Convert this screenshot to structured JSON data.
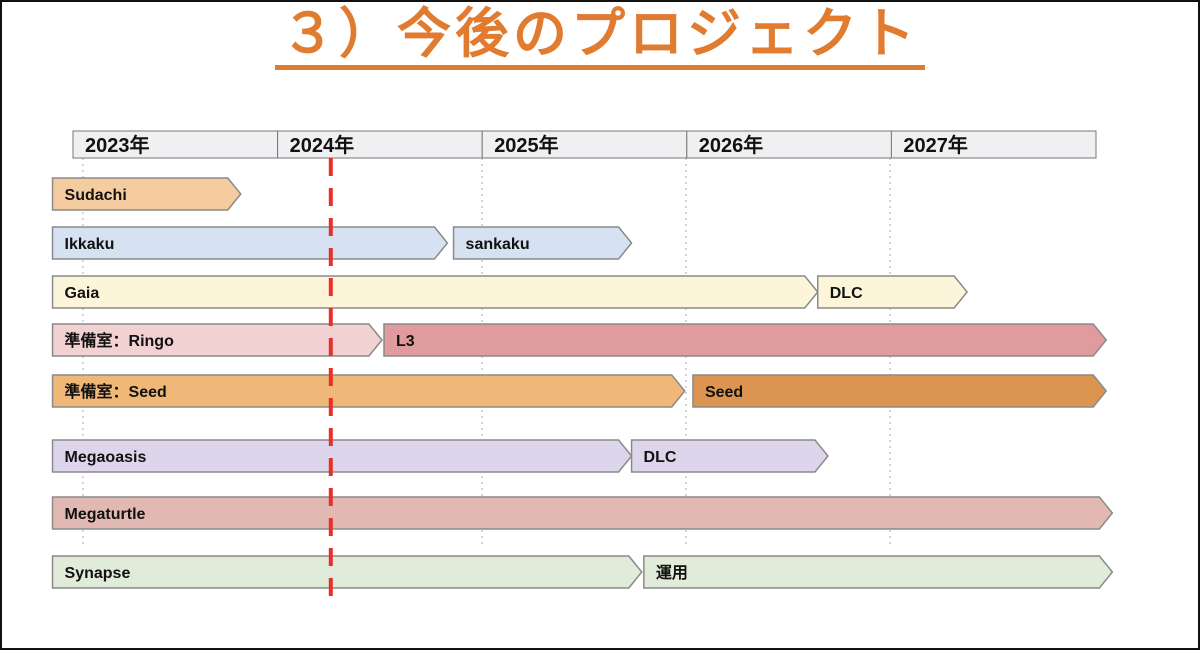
{
  "title": "３）今後のプロジェクト",
  "chart_data": {
    "type": "gantt",
    "years": [
      "2023年",
      "2024年",
      "2025年",
      "2026年",
      "2027年"
    ],
    "axis_start_year": 2023,
    "current_date_marker_year": 2024.26,
    "current_date_marker_color": "#e8302a",
    "rows": [
      {
        "segments": [
          {
            "label": "Sudachi",
            "start": 2022.9,
            "end": 2023.82,
            "color": "#f5cba0"
          }
        ]
      },
      {
        "segments": [
          {
            "label": "Ikkaku",
            "start": 2022.9,
            "end": 2024.83,
            "color": "#d6e1f1"
          },
          {
            "label": "sankaku",
            "start": 2024.86,
            "end": 2025.73,
            "color": "#d6e1f1"
          }
        ]
      },
      {
        "segments": [
          {
            "label": "Gaia",
            "start": 2022.9,
            "end": 2026.64,
            "color": "#fdf5da"
          },
          {
            "label": "DLC",
            "start": 2026.64,
            "end": 2027.37,
            "color": "#fdf5da"
          }
        ]
      },
      {
        "segments": [
          {
            "label": "準備室：Ringo",
            "start": 2022.9,
            "end": 2024.51,
            "color": "#f2d1d2"
          },
          {
            "label": "L3",
            "start": 2024.52,
            "end": 2028.05,
            "color": "#e09b9f"
          }
        ]
      },
      {
        "segments": [
          {
            "label": "準備室：Seed",
            "start": 2022.9,
            "end": 2025.99,
            "color": "#efb878"
          },
          {
            "label": "Seed",
            "start": 2026.03,
            "end": 2028.05,
            "color": "#dc9550"
          }
        ]
      },
      {
        "segments": [
          {
            "label": "Megaoasis",
            "start": 2022.9,
            "end": 2025.73,
            "color": "#ddd5ec"
          },
          {
            "label": "DLC",
            "start": 2025.73,
            "end": 2026.69,
            "color": "#ddd5ec"
          }
        ]
      },
      {
        "segments": [
          {
            "label": "Megaturtle",
            "start": 2022.9,
            "end": 2028.08,
            "color": "#e2b9b2"
          }
        ]
      },
      {
        "segments": [
          {
            "label": "Synapse",
            "start": 2022.9,
            "end": 2025.78,
            "color": "#e0ebd9"
          },
          {
            "label": "運用",
            "start": 2025.79,
            "end": 2028.08,
            "color": "#e0ebd9"
          }
        ]
      }
    ]
  }
}
